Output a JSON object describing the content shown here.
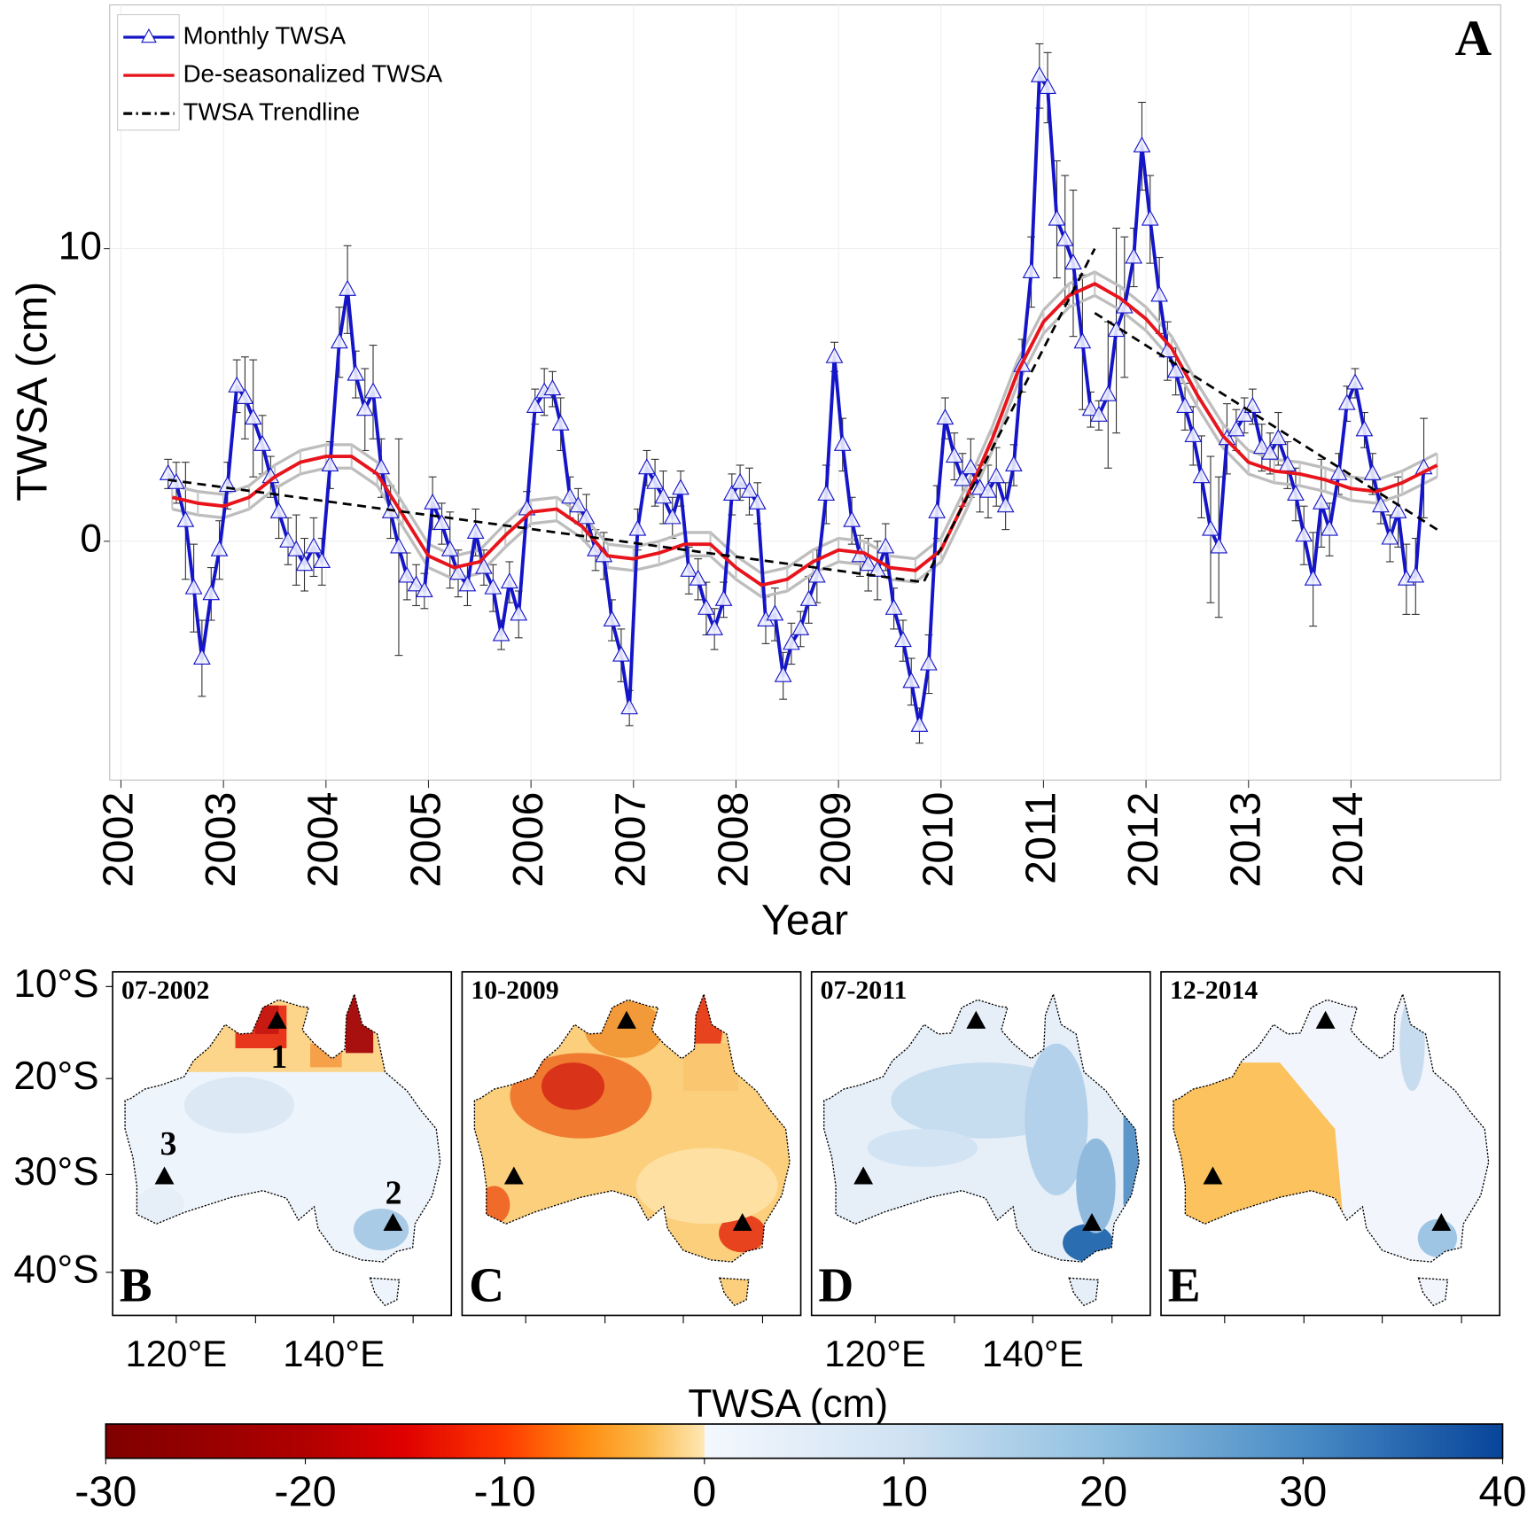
{
  "chart_data": [
    {
      "type": "line",
      "panel_label": "A",
      "xlabel": "Year",
      "ylabel": "TWSA (cm)",
      "xlim": [
        2001.89,
        2015.46
      ],
      "ylim": [
        -8.16,
        18.33
      ],
      "xticks": [
        2002,
        2003,
        2004,
        2005,
        2006,
        2007,
        2008,
        2009,
        2010,
        2011,
        2012,
        2013,
        2014
      ],
      "yticks": [
        0,
        10
      ],
      "grid": true,
      "legend": "top-left",
      "series": [
        {
          "name": "Monthly TWSA",
          "color": "#1414c8",
          "marker": "triangle",
          "x": [
            2002.46,
            2002.54,
            2002.63,
            2002.71,
            2002.79,
            2002.88,
            2002.96,
            2003.04,
            2003.13,
            2003.21,
            2003.29,
            2003.38,
            2003.46,
            2003.54,
            2003.63,
            2003.71,
            2003.79,
            2003.88,
            2003.96,
            2004.04,
            2004.13,
            2004.21,
            2004.29,
            2004.38,
            2004.46,
            2004.54,
            2004.63,
            2004.71,
            2004.79,
            2004.88,
            2004.96,
            2005.04,
            2005.13,
            2005.21,
            2005.29,
            2005.38,
            2005.46,
            2005.54,
            2005.63,
            2005.71,
            2005.79,
            2005.88,
            2005.96,
            2006.04,
            2006.13,
            2006.21,
            2006.29,
            2006.38,
            2006.46,
            2006.54,
            2006.63,
            2006.71,
            2006.79,
            2006.88,
            2006.96,
            2007.04,
            2007.13,
            2007.21,
            2007.29,
            2007.38,
            2007.46,
            2007.54,
            2007.63,
            2007.71,
            2007.79,
            2007.88,
            2007.96,
            2008.04,
            2008.13,
            2008.21,
            2008.29,
            2008.38,
            2008.46,
            2008.54,
            2008.63,
            2008.71,
            2008.79,
            2008.88,
            2008.96,
            2009.04,
            2009.13,
            2009.21,
            2009.29,
            2009.38,
            2009.46,
            2009.54,
            2009.63,
            2009.71,
            2009.79,
            2009.88,
            2009.96,
            2010.04,
            2010.13,
            2010.21,
            2010.29,
            2010.38,
            2010.46,
            2010.54,
            2010.63,
            2010.71,
            2010.79,
            2010.88,
            2010.96,
            2011.04,
            2011.13,
            2011.21,
            2011.29,
            2011.38,
            2011.46,
            2011.54,
            2011.63,
            2011.71,
            2011.79,
            2011.88,
            2011.96,
            2012.04,
            2012.13,
            2012.21,
            2012.29,
            2012.38,
            2012.46,
            2012.54,
            2012.63,
            2012.71,
            2012.79,
            2012.88,
            2012.96,
            2013.04,
            2013.13,
            2013.21,
            2013.29,
            2013.38,
            2013.46,
            2013.54,
            2013.63,
            2013.71,
            2013.79,
            2013.88,
            2013.96,
            2014.04,
            2014.13,
            2014.21,
            2014.29,
            2014.38,
            2014.46,
            2014.54,
            2014.63,
            2014.71
          ],
          "values": [
            2.3,
            2.0,
            0.7,
            -1.6,
            -4.0,
            -1.8,
            -0.3,
            1.9,
            5.3,
            4.9,
            4.2,
            3.3,
            2.2,
            1.0,
            0.0,
            -0.3,
            -0.8,
            -0.2,
            -0.7,
            2.6,
            6.8,
            8.6,
            5.7,
            4.5,
            5.1,
            2.5,
            1.0,
            -0.2,
            -1.2,
            -1.5,
            -1.7,
            1.3,
            0.6,
            -0.3,
            -1.1,
            -1.5,
            0.3,
            -0.9,
            -1.6,
            -3.2,
            -1.4,
            -2.5,
            1.1,
            4.6,
            5.1,
            5.2,
            4.0,
            1.5,
            1.2,
            0.8,
            -0.3,
            -0.5,
            -2.7,
            -3.9,
            -5.7,
            0.4,
            2.5,
            2.0,
            1.5,
            0.8,
            1.8,
            -1.0,
            -1.3,
            -2.3,
            -3.0,
            -2.0,
            1.6,
            2.0,
            1.7,
            1.3,
            -2.7,
            -2.5,
            -4.6,
            -3.5,
            -3.0,
            -2.0,
            -1.2,
            1.6,
            6.3,
            3.3,
            0.7,
            -0.5,
            -0.8,
            -1.0,
            -0.2,
            -2.3,
            -3.4,
            -4.8,
            -6.3,
            -4.2,
            1.0,
            4.2,
            2.9,
            2.1,
            2.5,
            1.8,
            1.7,
            2.2,
            1.2,
            2.6,
            6.0,
            9.2,
            15.9,
            15.5,
            11.0,
            10.3,
            9.5,
            6.8,
            4.5,
            4.3,
            5.0,
            7.2,
            8.0,
            9.7,
            13.5,
            11.0,
            8.4,
            6.5,
            5.8,
            4.6,
            3.6,
            2.2,
            0.4,
            -0.2,
            3.5,
            3.8,
            4.3,
            4.6,
            3.2,
            3.0,
            3.5,
            2.6,
            1.6,
            0.2,
            -1.3,
            1.3,
            0.4,
            2.3,
            4.7,
            5.4,
            3.8,
            2.3,
            1.2,
            0.1,
            1.0,
            -1.3,
            -1.2,
            2.5
          ],
          "errors": [
            0.5,
            0.7,
            2.0,
            1.5,
            1.3,
            0.9,
            1.0,
            0.8,
            0.9,
            1.4,
            2.0,
            1.0,
            0.7,
            0.9,
            0.8,
            1.2,
            0.9,
            1.0,
            0.8,
            0.8,
            1.2,
            1.5,
            0.8,
            1.4,
            1.6,
            1.0,
            0.9,
            3.7,
            0.8,
            0.7,
            0.6,
            0.9,
            0.7,
            1.3,
            0.8,
            0.7,
            0.8,
            0.6,
            0.8,
            0.5,
            0.7,
            0.8,
            0.6,
            0.6,
            0.8,
            0.6,
            0.9,
            0.7,
            0.6,
            0.8,
            0.7,
            0.8,
            0.7,
            0.9,
            0.6,
            0.7,
            0.6,
            0.8,
            0.9,
            0.7,
            0.6,
            0.8,
            0.7,
            0.9,
            0.7,
            0.6,
            0.7,
            0.6,
            0.8,
            0.7,
            0.8,
            0.9,
            0.8,
            0.7,
            0.6,
            0.8,
            0.9,
            1.0,
            0.5,
            0.9,
            0.8,
            0.7,
            0.9,
            1.0,
            0.8,
            0.7,
            0.7,
            0.8,
            0.6,
            1.0,
            0.9,
            0.7,
            0.8,
            0.9,
            1.0,
            0.8,
            0.9,
            1.0,
            0.8,
            0.7,
            0.9,
            1.2,
            1.1,
            1.2,
            2.0,
            2.2,
            2.5,
            2.3,
            0.6,
            0.5,
            2.5,
            3.5,
            2.4,
            1.0,
            1.5,
            1.5,
            1.3,
            1.0,
            0.8,
            0.8,
            1.0,
            1.4,
            2.5,
            2.4,
            1.2,
            0.7,
            0.6,
            0.6,
            0.8,
            0.7,
            0.9,
            0.8,
            0.9,
            1.0,
            1.6,
            1.5,
            0.9,
            0.7,
            0.6,
            0.5,
            0.6,
            0.7,
            0.6,
            0.8,
            1.2,
            1.2,
            1.3,
            1.7
          ]
        },
        {
          "name": "De-seasonalized TWSA",
          "color": "#e8141c",
          "ci": 0.4,
          "x": [
            2002.5,
            2002.75,
            2003,
            2003.25,
            2003.5,
            2003.75,
            2004,
            2004.25,
            2004.5,
            2004.75,
            2005,
            2005.25,
            2005.5,
            2005.75,
            2006,
            2006.25,
            2006.5,
            2006.75,
            2007,
            2007.25,
            2007.5,
            2007.75,
            2008,
            2008.25,
            2008.5,
            2008.75,
            2009,
            2009.25,
            2009.5,
            2009.75,
            2010,
            2010.25,
            2010.5,
            2010.75,
            2011,
            2011.25,
            2011.5,
            2011.75,
            2012,
            2012.25,
            2012.5,
            2012.75,
            2013,
            2013.25,
            2013.5,
            2013.75,
            2014,
            2014.25,
            2014.5,
            2014.84
          ],
          "values": [
            1.5,
            1.3,
            1.2,
            1.5,
            2.2,
            2.7,
            2.9,
            2.9,
            2.3,
            0.9,
            -0.5,
            -0.9,
            -0.7,
            0.2,
            1.0,
            1.1,
            0.5,
            -0.5,
            -0.6,
            -0.4,
            -0.1,
            -0.1,
            -0.9,
            -1.5,
            -1.3,
            -0.7,
            -0.3,
            -0.4,
            -0.9,
            -1.0,
            -0.3,
            1.5,
            3.5,
            5.8,
            7.5,
            8.4,
            8.8,
            8.3,
            7.6,
            6.6,
            5.0,
            3.6,
            2.7,
            2.4,
            2.3,
            2.1,
            1.8,
            1.7,
            2.0,
            2.6
          ]
        },
        {
          "name": "TWSA Trendline",
          "color": "#000000",
          "dash": true,
          "x": [
            2002.46,
            2009.83,
            2011.5,
            2011.55,
            2011.5,
            2014.84
          ],
          "values": [
            2.1,
            -1.4,
            10.0,
            null,
            7.8,
            0.4
          ]
        }
      ]
    },
    {
      "type": "colorbar",
      "title": "TWSA (cm)",
      "xlim": [
        -30,
        40
      ],
      "xticks": [
        -30,
        -20,
        -10,
        0,
        10,
        20,
        30,
        40
      ],
      "stops": [
        {
          "value": -30,
          "color": "#7f0000"
        },
        {
          "value": -20,
          "color": "#b00000"
        },
        {
          "value": -15,
          "color": "#e00000"
        },
        {
          "value": -10,
          "color": "#ff3a00"
        },
        {
          "value": -6,
          "color": "#ff8c10"
        },
        {
          "value": -3,
          "color": "#fbb848"
        },
        {
          "value": 0,
          "color": "#fee8b4"
        },
        {
          "value": 0,
          "color": "#f4f8fe"
        },
        {
          "value": 10,
          "color": "#d0e2f3"
        },
        {
          "value": 20,
          "color": "#90c0e0"
        },
        {
          "value": 30,
          "color": "#4a8cc6"
        },
        {
          "value": 40,
          "color": "#08449a"
        }
      ]
    }
  ],
  "maps": {
    "panels": [
      {
        "date": "07-2002",
        "letter": "B"
      },
      {
        "date": "10-2009",
        "letter": "C"
      },
      {
        "date": "07-2011",
        "letter": "D"
      },
      {
        "date": "12-2014",
        "letter": "E"
      }
    ],
    "lat_labels": [
      "10°S",
      "20°S",
      "30°S",
      "40°S"
    ],
    "lon_labels": [
      "120°E",
      "140°E"
    ],
    "site_labels": [
      "1",
      "2",
      "3"
    ]
  }
}
